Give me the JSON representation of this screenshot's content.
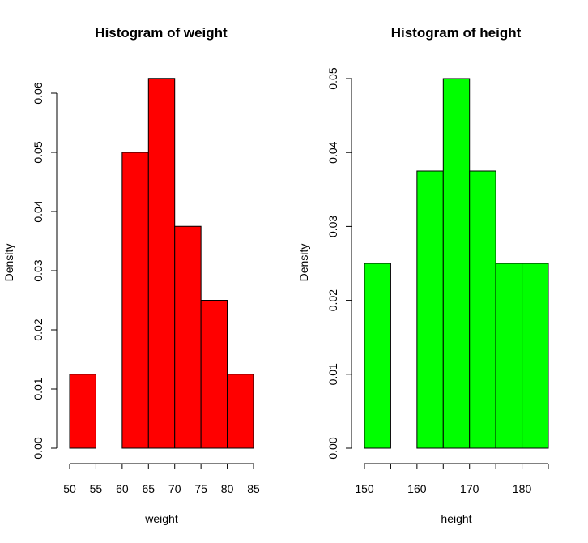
{
  "chart_data": [
    {
      "type": "bar",
      "title": "Histogram of weight",
      "xlabel": "weight",
      "ylabel": "Density",
      "bin_edges": [
        50,
        55,
        60,
        65,
        70,
        75,
        80,
        85
      ],
      "values": [
        0.0125,
        0,
        0.05,
        0.0625,
        0.0375,
        0.025,
        0.0125
      ],
      "color": "#FF0000",
      "xlim": [
        50,
        85
      ],
      "ylim": [
        0,
        0.0625
      ],
      "xticks": [
        50,
        55,
        60,
        65,
        70,
        75,
        80,
        85
      ],
      "xtick_labels": [
        "50",
        "55",
        "60",
        "65",
        "70",
        "75",
        "80",
        "85"
      ],
      "yticks": [
        0,
        0.01,
        0.02,
        0.03,
        0.04,
        0.05,
        0.06
      ],
      "ytick_labels": [
        "0.00",
        "0.01",
        "0.02",
        "0.03",
        "0.04",
        "0.05",
        "0.06"
      ]
    },
    {
      "type": "bar",
      "title": "Histogram of height",
      "xlabel": "height",
      "ylabel": "Density",
      "bin_edges": [
        150,
        155,
        160,
        165,
        170,
        175,
        180,
        185
      ],
      "values": [
        0.025,
        0,
        0.0375,
        0.05,
        0.0375,
        0.025,
        0.025
      ],
      "color": "#00FF00",
      "xlim": [
        150,
        185
      ],
      "ylim": [
        0,
        0.05
      ],
      "xticks": [
        150,
        155,
        160,
        165,
        170,
        175,
        180,
        185
      ],
      "xtick_labels": [
        "150",
        "",
        "160",
        "",
        "170",
        "",
        "180",
        ""
      ],
      "yticks": [
        0,
        0.01,
        0.02,
        0.03,
        0.04,
        0.05
      ],
      "ytick_labels": [
        "0.00",
        "0.01",
        "0.02",
        "0.03",
        "0.04",
        "0.05"
      ]
    }
  ]
}
